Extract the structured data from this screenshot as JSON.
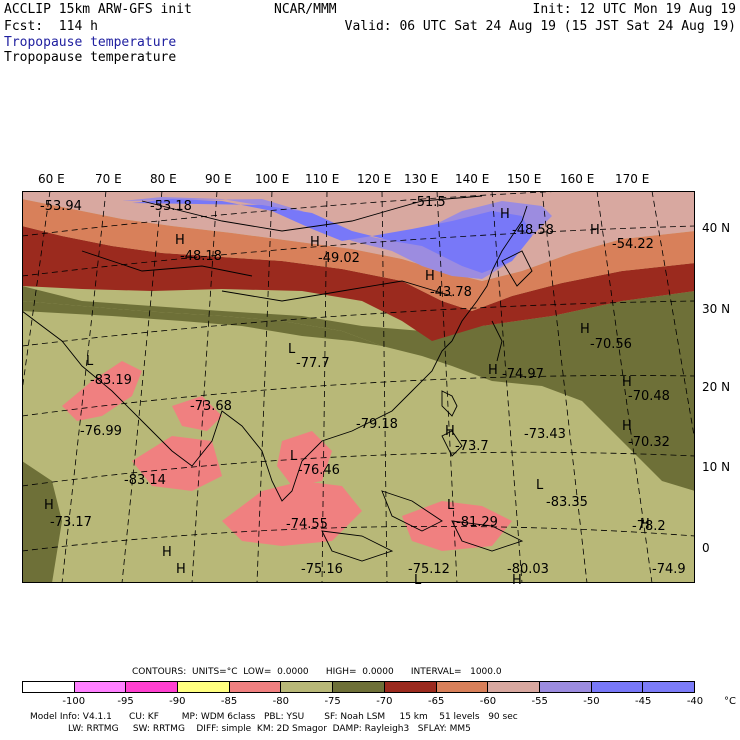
{
  "header": {
    "model": "ACCLIP 15km ARW-GFS init",
    "center": "NCAR/MMM",
    "init": "Init: 12 UTC Mon 19 Aug 19",
    "fcst": "Fcst:  114 h",
    "valid": "Valid: 06 UTC Sat 24 Aug 19 (15 JST Sat 24 Aug 19)",
    "var1": "Tropopause temperature",
    "var2": "Tropopause temperature"
  },
  "lon_labels": [
    "60 E",
    "70 E",
    "80 E",
    "90 E",
    "100 E",
    "110 E",
    "120 E",
    "130 E",
    "140 E",
    "150 E",
    "160 E",
    "170 E"
  ],
  "lat_labels": [
    "40 N",
    "30 N",
    "20 N",
    "10 N",
    "0"
  ],
  "map_labels": [
    {
      "text": "-53.94"
    },
    {
      "text": "-53.18"
    },
    {
      "text": "-51.5"
    },
    {
      "text": "H"
    },
    {
      "text": "-48.58"
    },
    {
      "text": "H"
    },
    {
      "text": "-48.18"
    },
    {
      "text": "H"
    },
    {
      "text": "-49.02"
    },
    {
      "text": "H"
    },
    {
      "text": "-54.22"
    },
    {
      "text": "H"
    },
    {
      "text": "-43.78"
    },
    {
      "text": "H"
    },
    {
      "text": "-70.56"
    },
    {
      "text": "L"
    },
    {
      "text": "-77.7"
    },
    {
      "text": "L"
    },
    {
      "text": "-83.19"
    },
    {
      "text": "H"
    },
    {
      "text": "-74.97"
    },
    {
      "text": "H"
    },
    {
      "text": "-70.48"
    },
    {
      "text": "-73.68"
    },
    {
      "text": "-76.99"
    },
    {
      "text": "-79.18"
    },
    {
      "text": "H"
    },
    {
      "text": "-73.7"
    },
    {
      "text": "-73.43"
    },
    {
      "text": "H"
    },
    {
      "text": "-70.32"
    },
    {
      "text": "L"
    },
    {
      "text": "-76.46"
    },
    {
      "text": "-83.14"
    },
    {
      "text": "L"
    },
    {
      "text": "-83.35"
    },
    {
      "text": "L"
    },
    {
      "text": "-81.29"
    },
    {
      "text": "H"
    },
    {
      "text": "-73.17"
    },
    {
      "text": "-74.55"
    },
    {
      "text": "H"
    },
    {
      "text": "-78.2"
    },
    {
      "text": "H"
    },
    {
      "text": "-75.16"
    },
    {
      "text": "H"
    },
    {
      "text": "-75.12"
    },
    {
      "text": "L"
    },
    {
      "text": "-80.03"
    },
    {
      "text": "H"
    },
    {
      "text": "-74.9"
    }
  ],
  "contours": {
    "line": "CONTOURS:  UNITS=°C  LOW=  0.0000      HIGH=  0.0000      INTERVAL=   1000.0"
  },
  "legend": {
    "colors": [
      "#ffffff",
      "#ff80ff",
      "#ff40d0",
      "#ffff80",
      "#f08080",
      "#b8b878",
      "#6e7038",
      "#9b2a1e",
      "#d8805a",
      "#d8a8a0",
      "#9c8ce0",
      "#7878f8",
      "#7c7cf8"
    ],
    "ticks": [
      "-100",
      "-95",
      "-90",
      "-85",
      "-80",
      "-75",
      "-70",
      "-65",
      "-60",
      "-55",
      "-50",
      "-45",
      "-40",
      "°C"
    ]
  },
  "footer": {
    "line1": "Model Info: V4.1.1      CU: KF        MP: WDM 6class   PBL: YSU       SF: Noah LSM     15 km    51 levels   90 sec",
    "line2": "LW: RRTMG     SW: RRTMG    DIFF: simple  KM: 2D Smagor  DAMP: Rayleigh3   SFLAY: MM5"
  }
}
